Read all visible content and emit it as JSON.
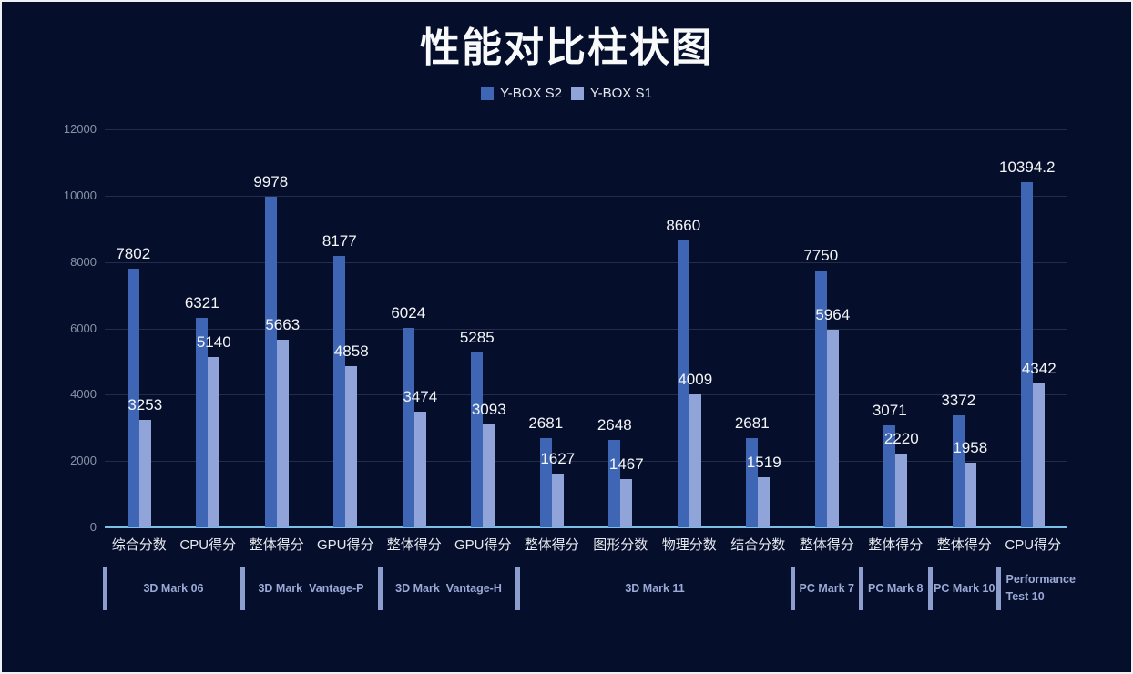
{
  "title": "性能对比柱状图",
  "legend": [
    {
      "label": "Y-BOX S2",
      "color": "#3e66b5"
    },
    {
      "label": "Y-BOX S1",
      "color": "#90a4da"
    }
  ],
  "chart_data": {
    "type": "bar",
    "title": "性能对比柱状图",
    "categories": [
      "综合分数",
      "CPU得分",
      "整体得分",
      "GPU得分",
      "整体得分",
      "GPU得分",
      "整体得分",
      "图形分数",
      "物理分数",
      "结合分数",
      "整体得分",
      "整体得分",
      "整体得分",
      "CPU得分"
    ],
    "groups": [
      {
        "label": "3D Mark 06",
        "span": 2
      },
      {
        "label": "3D Mark  Vantage-P",
        "span": 2
      },
      {
        "label": "3D Mark  Vantage-H",
        "span": 2
      },
      {
        "label": "3D Mark 11",
        "span": 4
      },
      {
        "label": "PC Mark 7",
        "span": 1
      },
      {
        "label": "PC Mark 8",
        "span": 1
      },
      {
        "label": "PC Mark 10",
        "span": 1
      },
      {
        "label": "Performance Test 10",
        "span": 1,
        "align": "left"
      }
    ],
    "series": [
      {
        "name": "Y-BOX S2",
        "color": "#3e66b5",
        "values": [
          7802,
          6321,
          9978,
          8177,
          6024,
          5285,
          2681,
          2648,
          8660,
          2681,
          7750,
          3071,
          3372,
          10394.2
        ]
      },
      {
        "name": "Y-BOX S1",
        "color": "#90a4da",
        "values": [
          3253,
          5140,
          5663,
          4858,
          3474,
          3093,
          1627,
          1467,
          4009,
          1519,
          5964,
          2220,
          1958,
          4342
        ]
      }
    ],
    "xlabel": "",
    "ylabel": "",
    "ylim": [
      0,
      12000
    ],
    "yticks": [
      0,
      2000,
      4000,
      6000,
      8000,
      10000,
      12000
    ],
    "grid": true,
    "legend_position": "top"
  },
  "colors": {
    "background": "#050e2b",
    "frame_border": "#eef0f4",
    "axis_line": "#7cc0e8",
    "gridline": "#232c4a",
    "value_label": "#f5f6f8",
    "category_label": "#e8eaf0",
    "ytick_label": "#8b92a6",
    "group_label": "#9aa9d6",
    "separator": "#8d9ece",
    "series_dark": "#3e66b5",
    "series_light": "#90a4da"
  }
}
